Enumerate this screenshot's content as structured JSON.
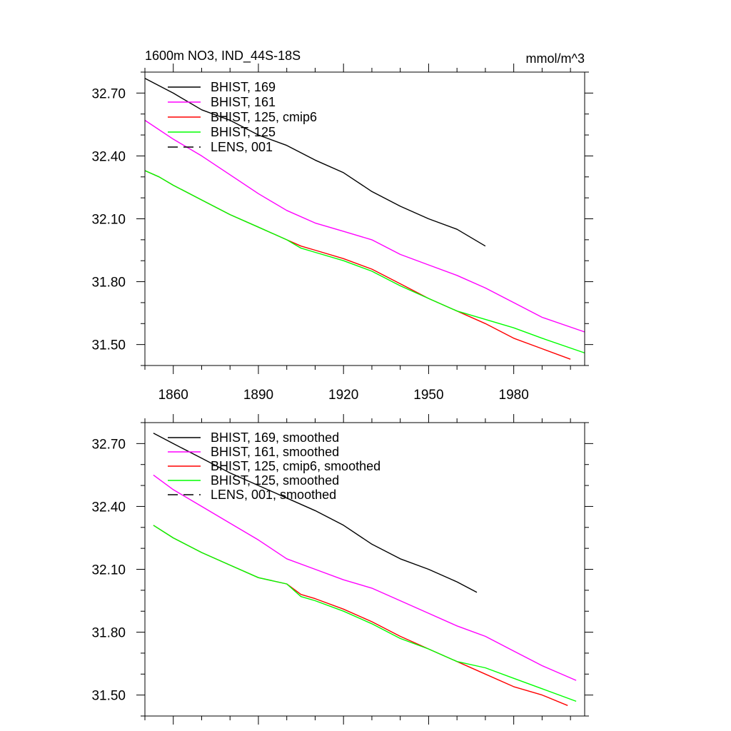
{
  "chart_data": [
    {
      "type": "line",
      "title": "1600m NO3, IND_44S-18S",
      "units": "mmol/m^3",
      "xlim": [
        1850,
        2005
      ],
      "ylim": [
        31.4,
        32.8
      ],
      "x_major_ticks": [
        1860,
        1890,
        1920,
        1950,
        1980
      ],
      "x_tick_labels": [
        "1860",
        "1890",
        "1920",
        "1950",
        "1980"
      ],
      "y_major_ticks": [
        31.5,
        31.8,
        32.1,
        32.4,
        32.7
      ],
      "y_tick_labels": [
        "31.50",
        "31.80",
        "32.10",
        "32.40",
        "32.70"
      ],
      "legend_position": "top-left",
      "series": [
        {
          "name": "BHIST, 169",
          "color": "#000000",
          "dash": "solid",
          "x": [
            1850,
            1860,
            1870,
            1880,
            1890,
            1900,
            1910,
            1920,
            1930,
            1940,
            1950,
            1960,
            1970
          ],
          "y": [
            32.77,
            32.7,
            32.62,
            32.57,
            32.5,
            32.45,
            32.38,
            32.32,
            32.23,
            32.16,
            32.1,
            32.05,
            31.97
          ]
        },
        {
          "name": "BHIST, 161",
          "color": "#ff00ff",
          "dash": "solid",
          "x": [
            1850,
            1860,
            1870,
            1880,
            1890,
            1900,
            1910,
            1920,
            1930,
            1940,
            1950,
            1960,
            1970,
            1980,
            1990,
            2005
          ],
          "y": [
            32.57,
            32.48,
            32.4,
            32.31,
            32.22,
            32.14,
            32.08,
            32.04,
            32.0,
            31.93,
            31.88,
            31.83,
            31.77,
            31.7,
            31.63,
            31.56
          ]
        },
        {
          "name": "BHIST, 125, cmip6",
          "color": "#ff0000",
          "dash": "solid",
          "x": [
            1850,
            1855,
            1860,
            1870,
            1880,
            1890,
            1900,
            1905,
            1910,
            1920,
            1930,
            1940,
            1950,
            1960,
            1970,
            1980,
            1990,
            2000
          ],
          "y": [
            32.33,
            32.3,
            32.26,
            32.19,
            32.12,
            32.06,
            32.0,
            31.97,
            31.95,
            31.91,
            31.86,
            31.79,
            31.72,
            31.66,
            31.6,
            31.53,
            31.48,
            31.43
          ]
        },
        {
          "name": "BHIST, 125",
          "color": "#00ff00",
          "dash": "solid",
          "x": [
            1850,
            1855,
            1860,
            1870,
            1880,
            1890,
            1900,
            1905,
            1910,
            1920,
            1930,
            1940,
            1950,
            1960,
            1970,
            1980,
            1990,
            2005
          ],
          "y": [
            32.33,
            32.3,
            32.26,
            32.19,
            32.12,
            32.06,
            32.0,
            31.96,
            31.94,
            31.9,
            31.85,
            31.78,
            31.72,
            31.66,
            31.62,
            31.58,
            31.53,
            31.46
          ]
        },
        {
          "name": "LENS, 001",
          "color": "#000000",
          "dash": "dashed",
          "x": [],
          "y": []
        }
      ]
    },
    {
      "type": "line",
      "title": "",
      "units": "",
      "xlim": [
        1850,
        2005
      ],
      "ylim": [
        31.4,
        32.8
      ],
      "x_major_ticks": [
        1860,
        1890,
        1920,
        1950,
        1980
      ],
      "x_tick_labels": [],
      "y_major_ticks": [
        31.5,
        31.8,
        32.1,
        32.4,
        32.7
      ],
      "y_tick_labels": [
        "31.50",
        "31.80",
        "32.10",
        "32.40",
        "32.70"
      ],
      "legend_position": "top-left",
      "series": [
        {
          "name": "BHIST, 169, smoothed",
          "color": "#000000",
          "dash": "solid",
          "x": [
            1853,
            1860,
            1870,
            1880,
            1890,
            1900,
            1910,
            1920,
            1930,
            1940,
            1950,
            1960,
            1967
          ],
          "y": [
            32.75,
            32.7,
            32.63,
            32.56,
            32.5,
            32.44,
            32.38,
            32.31,
            32.22,
            32.15,
            32.1,
            32.04,
            31.99
          ]
        },
        {
          "name": "BHIST, 161, smoothed",
          "color": "#ff00ff",
          "dash": "solid",
          "x": [
            1853,
            1860,
            1870,
            1880,
            1890,
            1900,
            1910,
            1920,
            1930,
            1940,
            1950,
            1960,
            1970,
            1980,
            1990,
            2002
          ],
          "y": [
            32.55,
            32.48,
            32.4,
            32.32,
            32.24,
            32.15,
            32.1,
            32.05,
            32.01,
            31.95,
            31.89,
            31.83,
            31.78,
            31.71,
            31.64,
            31.57
          ]
        },
        {
          "name": "BHIST, 125, cmip6, smoothed",
          "color": "#ff0000",
          "dash": "solid",
          "x": [
            1853,
            1860,
            1870,
            1880,
            1890,
            1900,
            1905,
            1910,
            1920,
            1930,
            1940,
            1950,
            1960,
            1970,
            1980,
            1990,
            1999
          ],
          "y": [
            32.31,
            32.25,
            32.18,
            32.12,
            32.06,
            32.03,
            31.98,
            31.96,
            31.91,
            31.85,
            31.78,
            31.72,
            31.66,
            31.6,
            31.54,
            31.5,
            31.45
          ]
        },
        {
          "name": "BHIST, 125, smoothed",
          "color": "#00ff00",
          "dash": "solid",
          "x": [
            1853,
            1860,
            1870,
            1880,
            1890,
            1900,
            1905,
            1910,
            1920,
            1930,
            1940,
            1950,
            1960,
            1970,
            1980,
            1990,
            2002
          ],
          "y": [
            32.31,
            32.25,
            32.18,
            32.12,
            32.06,
            32.03,
            31.97,
            31.95,
            31.9,
            31.84,
            31.77,
            31.72,
            31.66,
            31.63,
            31.58,
            31.53,
            31.47
          ]
        },
        {
          "name": "LENS, 001, smoothed",
          "color": "#000000",
          "dash": "dashed",
          "x": [],
          "y": []
        }
      ]
    }
  ]
}
